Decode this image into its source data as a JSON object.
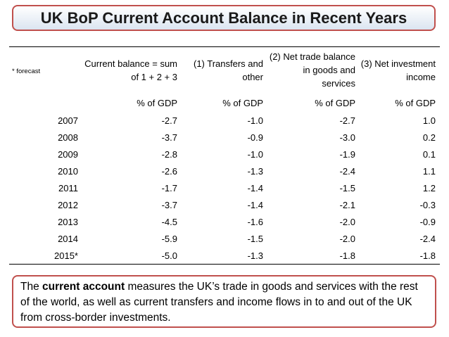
{
  "title": "UK BoP Current Account Balance in Recent Years",
  "table": {
    "note": "* forecast",
    "headers": [
      "Current balance = sum of 1 + 2 + 3",
      "(1) Transfers and other",
      "(2) Net trade balance in goods and services",
      "(3) Net investment income"
    ],
    "units": [
      "% of GDP",
      "% of GDP",
      "% of GDP",
      "% of GDP"
    ],
    "rows": [
      {
        "year": "2007",
        "values": [
          "-2.7",
          "-1.0",
          "-2.7",
          "1.0"
        ]
      },
      {
        "year": "2008",
        "values": [
          "-3.7",
          "-0.9",
          "-3.0",
          "0.2"
        ]
      },
      {
        "year": "2009",
        "values": [
          "-2.8",
          "-1.0",
          "-1.9",
          "0.1"
        ]
      },
      {
        "year": "2010",
        "values": [
          "-2.6",
          "-1.3",
          "-2.4",
          "1.1"
        ]
      },
      {
        "year": "2011",
        "values": [
          "-1.7",
          "-1.4",
          "-1.5",
          "1.2"
        ]
      },
      {
        "year": "2012",
        "values": [
          "-3.7",
          "-1.4",
          "-2.1",
          "-0.3"
        ]
      },
      {
        "year": "2013",
        "values": [
          "-4.5",
          "-1.6",
          "-2.0",
          "-0.9"
        ]
      },
      {
        "year": "2014",
        "values": [
          "-5.9",
          "-1.5",
          "-2.0",
          "-2.4"
        ]
      },
      {
        "year": "2015*",
        "values": [
          "-5.0",
          "-1.3",
          "-1.8",
          "-1.8"
        ]
      }
    ]
  },
  "info": {
    "lead": "The ",
    "bold": "current account",
    "rest": " measures the UK’s trade in goods and services with the rest of the world, as well as current transfers and income flows in to and out of the UK from cross-border investments."
  },
  "colors": {
    "border_accent": "#c0504d",
    "title_gradient_bottom": "#dbe5f1"
  }
}
